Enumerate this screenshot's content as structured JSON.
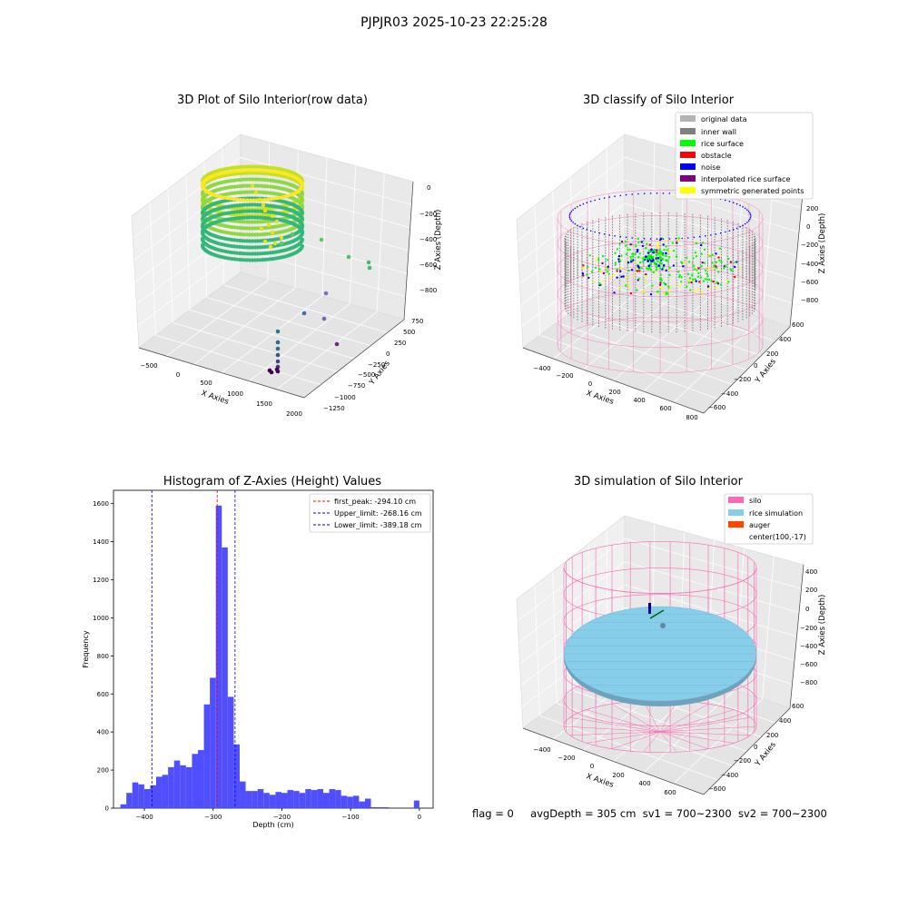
{
  "figure": {
    "suptitle": "PJPJR03 2025-10-23 22:25:28",
    "footer": {
      "flag": "flag = 0",
      "avg_depth": "avgDepth = 305 cm",
      "sv1": "sv1 = 700~2300",
      "sv2": "sv2 = 700~2300"
    }
  },
  "colors": {
    "original": "#b3b3b3",
    "inner_wall": "#808080",
    "rice_surface": "#00ff00",
    "obstacle": "#ff0000",
    "noise": "#0000ff",
    "interpolated": "#800080",
    "symmetric": "#ffff00",
    "silo": "#ff69b4",
    "rice_sim": "#87ceeb",
    "auger": "#ff4500",
    "hist_bar": "#4b4bff",
    "peak_line": "#ff0000",
    "limit_line": "#0000cc"
  },
  "chart_data": [
    {
      "type": "scatter3d",
      "title": "3D Plot of Silo Interior(row data)",
      "xlabel": "X Axies",
      "ylabel": "Y Axies",
      "zlabel": "Z Axies (Depth)",
      "x_ticks": [
        "−500",
        "0",
        "500",
        "1000",
        "1500",
        "2000"
      ],
      "y_ticks": [
        "750",
        "500",
        "250",
        "0",
        "−250",
        "−500",
        "−750",
        "−1000",
        "−1250"
      ],
      "z_ticks": [
        "0",
        "−200",
        "−400",
        "−600",
        "−800"
      ]
    },
    {
      "type": "scatter3d",
      "title": "3D classify of Silo Interior",
      "xlabel": "X Axies",
      "ylabel": "Y Axies",
      "zlabel": "Z Axies (Depth)",
      "x_ticks": [
        "−400",
        "−200",
        "0",
        "200",
        "400",
        "600",
        "800"
      ],
      "y_ticks": [
        "600",
        "400",
        "200",
        "0",
        "−200",
        "−400",
        "−600"
      ],
      "z_ticks": [
        "200",
        "0",
        "−200",
        "−400",
        "−600",
        "−800"
      ],
      "legend": [
        "original data",
        "inner wall",
        "rice surface",
        "obstacle",
        "noise",
        "interpolated rice surface",
        "symmetric generated points"
      ],
      "legend_loc": "upper right"
    },
    {
      "type": "bar",
      "title": "Histogram of Z-Axies (Height) Values",
      "xlabel": "Depth (cm)",
      "ylabel": "Frequency",
      "xlim": [
        -445,
        20
      ],
      "ylim": [
        0,
        1670
      ],
      "x_ticks": [
        -400,
        -300,
        -200,
        -100,
        0
      ],
      "x_tick_labels": [
        "−400",
        "−300",
        "−200",
        "−100",
        "0"
      ],
      "y_ticks": [
        0,
        200,
        400,
        600,
        800,
        1000,
        1200,
        1400,
        1600
      ],
      "bin_start": -435,
      "bin_width": 8.68,
      "values": [
        20,
        80,
        135,
        125,
        100,
        120,
        165,
        175,
        215,
        250,
        225,
        215,
        285,
        305,
        545,
        685,
        1590,
        1370,
        585,
        335,
        140,
        90,
        90,
        100,
        80,
        70,
        85,
        80,
        95,
        90,
        80,
        100,
        95,
        100,
        80,
        100,
        95,
        65,
        60,
        65,
        35,
        50,
        5,
        5,
        5,
        40
      ],
      "lines": [
        {
          "label": "first_peak: -294.10 cm",
          "x": -294.1,
          "style": "peak"
        },
        {
          "label": "Upper_limit: -268.16 cm",
          "x": -268.16,
          "style": "limit"
        },
        {
          "label": "Lower_limit: -389.18 cm",
          "x": -389.18,
          "style": "limit"
        }
      ],
      "legend_loc": "upper right"
    },
    {
      "type": "surface3d",
      "title": "3D simulation of Silo Interior",
      "xlabel": "X Axies",
      "ylabel": "Y Axies",
      "zlabel": "Z Axies (Depth)",
      "x_ticks": [
        "−400",
        "−200",
        "0",
        "200",
        "400",
        "600"
      ],
      "y_ticks": [
        "600",
        "400",
        "200",
        "0",
        "−200",
        "−400",
        "−600"
      ],
      "z_ticks": [
        "400",
        "200",
        "0",
        "−200",
        "−400",
        "−600",
        "−800"
      ],
      "legend": [
        "silo",
        "rice simulation",
        "auger",
        "center(100,-17)"
      ],
      "legend_loc": "upper right"
    }
  ]
}
